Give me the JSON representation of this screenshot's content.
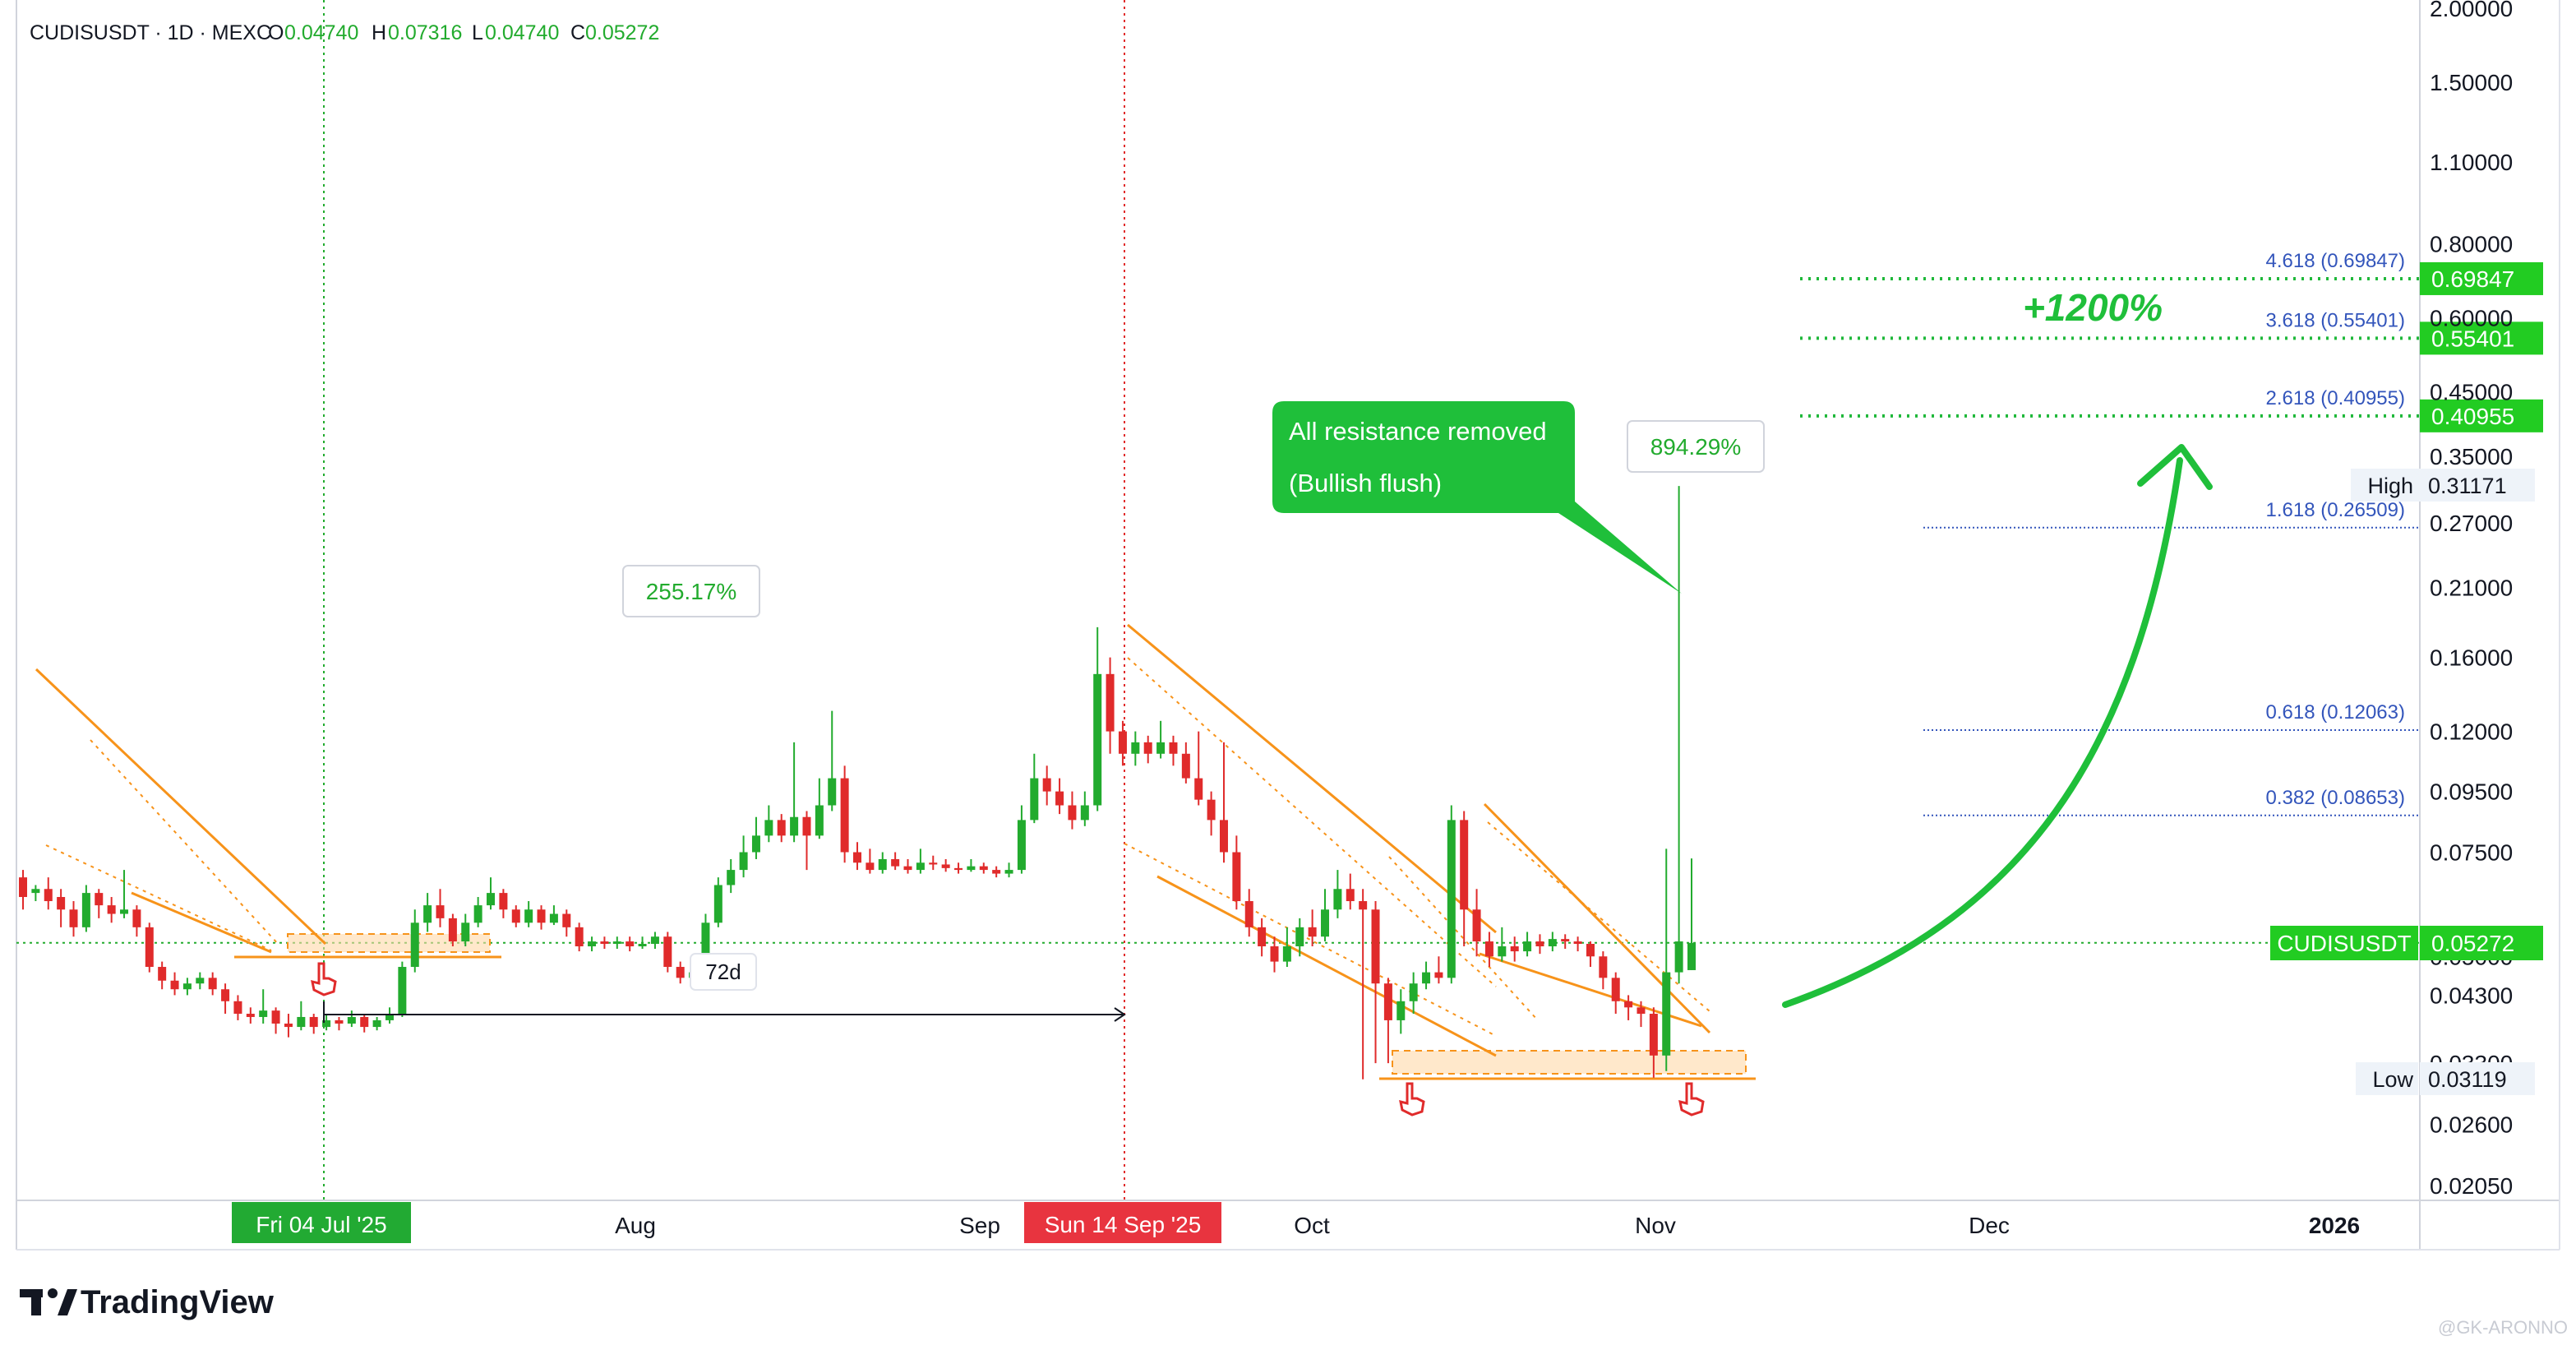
{
  "header": {
    "symbol_line": "CUDISUSDT · 1D · MEXC",
    "o_label": "O",
    "o_value": "0.04740",
    "h_label": "H",
    "h_value": "0.07316",
    "l_label": "L",
    "l_value": "0.04740",
    "c_label": "C",
    "c_value": "0.05272"
  },
  "footer": {
    "brand": "TradingView",
    "watermark": "@GK-ARONNO"
  },
  "colors": {
    "up": "#22ab2e",
    "down": "#e02b2b",
    "fib": "#3355bb",
    "accent": "#1fb83a",
    "orange": "#f7931a"
  },
  "chart_data": {
    "type": "candlestick",
    "y_scale": "log",
    "ylim": [
      0.0195,
      2.0
    ],
    "price_ticks": [
      "2.00000",
      "1.50000",
      "1.10000",
      "0.80000",
      "0.60000",
      "0.45000",
      "0.35000",
      "0.27000",
      "0.21000",
      "0.16000",
      "0.12000",
      "0.09500",
      "0.07500",
      "0.05000",
      "0.04300",
      "0.03300",
      "0.02600",
      "0.02050"
    ],
    "time_labels": [
      "Aug",
      "Sep",
      "Oct",
      "Nov",
      "Dec",
      "2026"
    ],
    "date_badges": [
      "Fri 04 Jul '25",
      "Sun 14 Sep '25"
    ],
    "last_price": {
      "symbol": "CUDISUSDT",
      "value": "0.05272"
    },
    "high": {
      "label": "High",
      "value": "0.31171"
    },
    "low": {
      "label": "Low",
      "value": "0.03119"
    },
    "fib_levels": [
      {
        "label": "4.618 (0.69847)",
        "badge": "0.69847",
        "price": 0.69847
      },
      {
        "label": "3.618 (0.55401)",
        "badge": "0.55401",
        "price": 0.55401
      },
      {
        "label": "2.618 (0.40955)",
        "badge": "0.40955",
        "price": 0.40955
      },
      {
        "label": "1.618 (0.26509)",
        "price": 0.26509
      },
      {
        "label": "0.618 (0.12063)",
        "price": 0.12063
      },
      {
        "label": "0.382 (0.08653)",
        "price": 0.08653
      }
    ],
    "annotations": {
      "gain_1": "255.17%",
      "gain_2": "894.29%",
      "days": "72d",
      "callout_line1": "All resistance removed",
      "callout_line2": "(Bullish flush)",
      "target": "+1200%"
    },
    "candles": [
      [
        0.068,
        0.063,
        0.07,
        0.06
      ],
      [
        0.064,
        0.065,
        0.066,
        0.062
      ],
      [
        0.065,
        0.062,
        0.068,
        0.06
      ],
      [
        0.063,
        0.06,
        0.065,
        0.056
      ],
      [
        0.06,
        0.056,
        0.062,
        0.054
      ],
      [
        0.056,
        0.064,
        0.066,
        0.055
      ],
      [
        0.064,
        0.061,
        0.065,
        0.058
      ],
      [
        0.061,
        0.059,
        0.063,
        0.057
      ],
      [
        0.059,
        0.06,
        0.07,
        0.058
      ],
      [
        0.06,
        0.056,
        0.061,
        0.054
      ],
      [
        0.056,
        0.048,
        0.057,
        0.047
      ],
      [
        0.048,
        0.0455,
        0.049,
        0.044
      ],
      [
        0.0455,
        0.044,
        0.047,
        0.043
      ],
      [
        0.044,
        0.045,
        0.046,
        0.043
      ],
      [
        0.045,
        0.046,
        0.047,
        0.044
      ],
      [
        0.046,
        0.044,
        0.047,
        0.043
      ],
      [
        0.044,
        0.042,
        0.045,
        0.04
      ],
      [
        0.042,
        0.04,
        0.043,
        0.039
      ],
      [
        0.04,
        0.0395,
        0.041,
        0.0385
      ],
      [
        0.0395,
        0.0405,
        0.044,
        0.0385
      ],
      [
        0.0405,
        0.0385,
        0.041,
        0.037
      ],
      [
        0.0385,
        0.038,
        0.04,
        0.0365
      ],
      [
        0.038,
        0.0395,
        0.042,
        0.0375
      ],
      [
        0.0395,
        0.038,
        0.04,
        0.037
      ],
      [
        0.038,
        0.039,
        0.04,
        0.0375
      ],
      [
        0.039,
        0.0385,
        0.0395,
        0.0375
      ],
      [
        0.0385,
        0.0395,
        0.0405,
        0.038
      ],
      [
        0.0395,
        0.038,
        0.04,
        0.0372
      ],
      [
        0.038,
        0.039,
        0.0395,
        0.0375
      ],
      [
        0.039,
        0.04,
        0.041,
        0.0385
      ],
      [
        0.04,
        0.048,
        0.049,
        0.0395
      ],
      [
        0.048,
        0.057,
        0.06,
        0.047
      ],
      [
        0.057,
        0.061,
        0.064,
        0.055
      ],
      [
        0.061,
        0.058,
        0.065,
        0.056
      ],
      [
        0.058,
        0.053,
        0.059,
        0.052
      ],
      [
        0.053,
        0.057,
        0.059,
        0.052
      ],
      [
        0.057,
        0.061,
        0.063,
        0.056
      ],
      [
        0.061,
        0.064,
        0.068,
        0.06
      ],
      [
        0.064,
        0.06,
        0.065,
        0.058
      ],
      [
        0.06,
        0.057,
        0.061,
        0.056
      ],
      [
        0.057,
        0.06,
        0.062,
        0.056
      ],
      [
        0.06,
        0.057,
        0.061,
        0.0555
      ],
      [
        0.057,
        0.059,
        0.061,
        0.0565
      ],
      [
        0.059,
        0.056,
        0.06,
        0.054
      ],
      [
        0.056,
        0.052,
        0.057,
        0.051
      ],
      [
        0.052,
        0.053,
        0.054,
        0.051
      ],
      [
        0.053,
        0.0525,
        0.054,
        0.0515
      ],
      [
        0.0525,
        0.053,
        0.054,
        0.0515
      ],
      [
        0.053,
        0.052,
        0.054,
        0.051
      ],
      [
        0.052,
        0.0525,
        0.054,
        0.0515
      ],
      [
        0.0525,
        0.054,
        0.055,
        0.0515
      ],
      [
        0.054,
        0.048,
        0.055,
        0.047
      ],
      [
        0.048,
        0.046,
        0.049,
        0.045
      ],
      [
        0.046,
        0.047,
        0.048,
        0.045
      ],
      [
        0.047,
        0.057,
        0.059,
        0.046
      ],
      [
        0.057,
        0.066,
        0.068,
        0.056
      ],
      [
        0.066,
        0.07,
        0.073,
        0.064
      ],
      [
        0.07,
        0.075,
        0.08,
        0.068
      ],
      [
        0.075,
        0.08,
        0.086,
        0.073
      ],
      [
        0.08,
        0.085,
        0.09,
        0.078
      ],
      [
        0.085,
        0.08,
        0.087,
        0.078
      ],
      [
        0.08,
        0.086,
        0.115,
        0.078
      ],
      [
        0.086,
        0.08,
        0.088,
        0.07
      ],
      [
        0.08,
        0.09,
        0.1,
        0.079
      ],
      [
        0.09,
        0.1,
        0.13,
        0.088
      ],
      [
        0.1,
        0.075,
        0.105,
        0.072
      ],
      [
        0.075,
        0.072,
        0.078,
        0.07
      ],
      [
        0.072,
        0.07,
        0.076,
        0.069
      ],
      [
        0.07,
        0.073,
        0.075,
        0.069
      ],
      [
        0.073,
        0.071,
        0.075,
        0.07
      ],
      [
        0.071,
        0.07,
        0.073,
        0.069
      ],
      [
        0.07,
        0.072,
        0.076,
        0.069
      ],
      [
        0.072,
        0.0715,
        0.074,
        0.07
      ],
      [
        0.0715,
        0.0705,
        0.073,
        0.0695
      ],
      [
        0.0705,
        0.07,
        0.072,
        0.069
      ],
      [
        0.07,
        0.071,
        0.073,
        0.0695
      ],
      [
        0.071,
        0.07,
        0.072,
        0.069
      ],
      [
        0.07,
        0.069,
        0.071,
        0.068
      ],
      [
        0.069,
        0.07,
        0.072,
        0.068
      ],
      [
        0.07,
        0.085,
        0.09,
        0.069
      ],
      [
        0.085,
        0.1,
        0.11,
        0.084
      ],
      [
        0.1,
        0.095,
        0.105,
        0.09
      ],
      [
        0.095,
        0.09,
        0.1,
        0.087
      ],
      [
        0.09,
        0.085,
        0.095,
        0.082
      ],
      [
        0.085,
        0.09,
        0.095,
        0.083
      ],
      [
        0.09,
        0.15,
        0.18,
        0.088
      ],
      [
        0.15,
        0.12,
        0.16,
        0.11
      ],
      [
        0.12,
        0.11,
        0.125,
        0.105
      ],
      [
        0.11,
        0.115,
        0.12,
        0.105
      ],
      [
        0.115,
        0.11,
        0.118,
        0.106
      ],
      [
        0.11,
        0.115,
        0.125,
        0.108
      ],
      [
        0.115,
        0.11,
        0.118,
        0.105
      ],
      [
        0.11,
        0.1,
        0.115,
        0.098
      ],
      [
        0.1,
        0.092,
        0.12,
        0.09
      ],
      [
        0.092,
        0.085,
        0.095,
        0.08
      ],
      [
        0.085,
        0.075,
        0.115,
        0.072
      ],
      [
        0.075,
        0.062,
        0.08,
        0.06
      ],
      [
        0.062,
        0.056,
        0.065,
        0.054
      ],
      [
        0.056,
        0.052,
        0.058,
        0.05
      ],
      [
        0.052,
        0.049,
        0.054,
        0.047
      ],
      [
        0.049,
        0.052,
        0.056,
        0.048
      ],
      [
        0.052,
        0.056,
        0.058,
        0.05
      ],
      [
        0.056,
        0.054,
        0.06,
        0.052
      ],
      [
        0.054,
        0.06,
        0.065,
        0.053
      ],
      [
        0.06,
        0.065,
        0.07,
        0.058
      ],
      [
        0.065,
        0.062,
        0.069,
        0.06
      ],
      [
        0.062,
        0.06,
        0.065,
        0.031
      ],
      [
        0.06,
        0.045,
        0.062,
        0.033
      ],
      [
        0.045,
        0.039,
        0.046,
        0.033
      ],
      [
        0.039,
        0.042,
        0.044,
        0.037
      ],
      [
        0.042,
        0.045,
        0.047,
        0.04
      ],
      [
        0.045,
        0.047,
        0.049,
        0.044
      ],
      [
        0.047,
        0.046,
        0.05,
        0.045
      ],
      [
        0.046,
        0.085,
        0.09,
        0.045
      ],
      [
        0.085,
        0.06,
        0.088,
        0.052
      ],
      [
        0.06,
        0.053,
        0.065,
        0.05
      ],
      [
        0.053,
        0.05,
        0.055,
        0.048
      ],
      [
        0.05,
        0.052,
        0.056,
        0.049
      ],
      [
        0.052,
        0.051,
        0.054,
        0.049
      ],
      [
        0.051,
        0.053,
        0.055,
        0.05
      ],
      [
        0.053,
        0.052,
        0.0545,
        0.0505
      ],
      [
        0.052,
        0.0535,
        0.055,
        0.051
      ],
      [
        0.0535,
        0.053,
        0.0545,
        0.0515
      ],
      [
        0.053,
        0.0525,
        0.054,
        0.051
      ],
      [
        0.0525,
        0.05,
        0.053,
        0.048
      ],
      [
        0.05,
        0.046,
        0.051,
        0.044
      ],
      [
        0.046,
        0.042,
        0.047,
        0.04
      ],
      [
        0.042,
        0.041,
        0.043,
        0.039
      ],
      [
        0.041,
        0.04,
        0.042,
        0.038
      ],
      [
        0.04,
        0.034,
        0.041,
        0.0312
      ],
      [
        0.034,
        0.047,
        0.076,
        0.032
      ],
      [
        0.047,
        0.053,
        0.3117,
        0.045
      ],
      [
        0.0474,
        0.0527,
        0.0732,
        0.0474
      ]
    ]
  }
}
